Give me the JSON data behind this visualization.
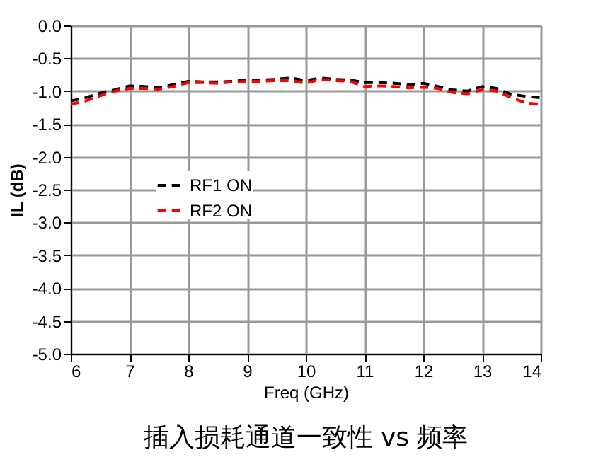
{
  "chart_data": {
    "type": "line",
    "title": "插入损耗通道一致性 vs 频率",
    "xlabel": "Freq (GHz)",
    "ylabel": "IL (dB)",
    "x": [
      6,
      6.25,
      6.5,
      6.75,
      7,
      7.25,
      7.5,
      7.75,
      8,
      8.25,
      8.5,
      8.75,
      9,
      9.25,
      9.5,
      9.75,
      10,
      10.25,
      10.5,
      10.75,
      11,
      11.25,
      11.5,
      11.75,
      12,
      12.25,
      12.5,
      12.75,
      13,
      13.25,
      13.5,
      13.75,
      14
    ],
    "series": [
      {
        "name": "RF1 ON",
        "color": "#000000",
        "values": [
          -1.15,
          -1.1,
          -1.03,
          -0.98,
          -0.92,
          -0.93,
          -0.95,
          -0.9,
          -0.85,
          -0.86,
          -0.86,
          -0.85,
          -0.83,
          -0.83,
          -0.82,
          -0.8,
          -0.84,
          -0.8,
          -0.82,
          -0.83,
          -0.87,
          -0.87,
          -0.88,
          -0.9,
          -0.88,
          -0.93,
          -0.98,
          -1.0,
          -0.93,
          -0.96,
          -1.05,
          -1.08,
          -1.1
        ]
      },
      {
        "name": "RF2 ON",
        "color": "#ff0000",
        "values": [
          -1.2,
          -1.15,
          -1.07,
          -1.0,
          -0.96,
          -0.96,
          -0.97,
          -0.93,
          -0.87,
          -0.87,
          -0.88,
          -0.86,
          -0.85,
          -0.85,
          -0.84,
          -0.84,
          -0.88,
          -0.82,
          -0.84,
          -0.85,
          -0.93,
          -0.92,
          -0.93,
          -0.95,
          -0.94,
          -0.96,
          -1.02,
          -1.04,
          -0.98,
          -1.0,
          -1.1,
          -1.18,
          -1.2
        ]
      }
    ],
    "xlim": [
      6,
      14
    ],
    "xticks": [
      6,
      7,
      8,
      9,
      10,
      11,
      12,
      13,
      14
    ],
    "ylim": [
      -5,
      0
    ],
    "yticks": [
      {
        "value": 0,
        "label": "0.0"
      },
      {
        "value": -0.5,
        "label": "-0.5"
      },
      {
        "value": -1,
        "label": "-1.0"
      },
      {
        "value": -1.5,
        "label": "-1.5"
      },
      {
        "value": -2,
        "label": "-2.0"
      },
      {
        "value": -2.5,
        "label": "-2.5"
      },
      {
        "value": -3,
        "label": "-3.0"
      },
      {
        "value": -3.5,
        "label": "-3.5"
      },
      {
        "value": -4,
        "label": "-4.0"
      },
      {
        "value": -4.5,
        "label": "-4.5"
      },
      {
        "value": -5,
        "label": "-5.0"
      }
    ],
    "grid": true,
    "legend": "left",
    "line_style": "dashed",
    "marker": "none"
  }
}
